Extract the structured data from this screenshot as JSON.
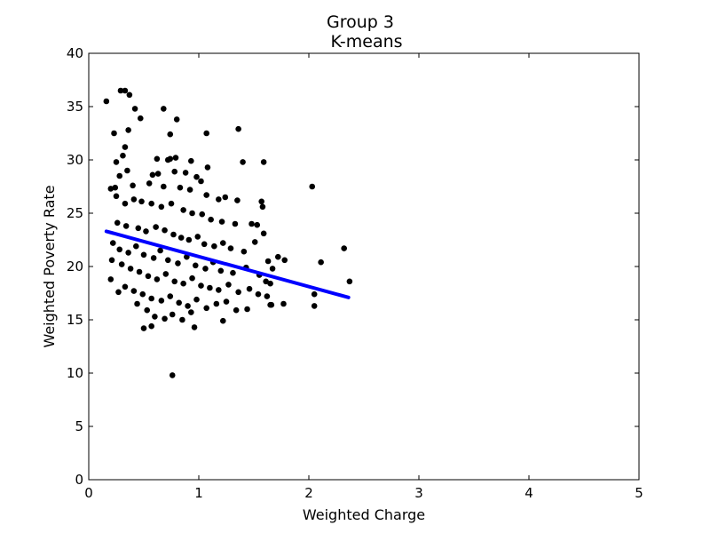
{
  "chart_data": {
    "type": "scatter",
    "title": "Group 3",
    "subtitle": "K-means",
    "xlabel": "Weighted Charge",
    "ylabel": "Weighted Poverty Rate",
    "xlim": [
      0,
      5
    ],
    "ylim": [
      0,
      40
    ],
    "xticks": [
      "0",
      "1",
      "2",
      "3",
      "4",
      "5"
    ],
    "yticks": [
      "0",
      "5",
      "10",
      "15",
      "20",
      "25",
      "30",
      "35",
      "40"
    ],
    "grid": false,
    "legend": "none",
    "point_color": "#000000",
    "line_color": "#0000ff",
    "regression_line": {
      "x": [
        0.16,
        2.36
      ],
      "y": [
        23.3,
        17.1
      ]
    },
    "points": [
      [
        0.16,
        35.5
      ],
      [
        0.29,
        36.5
      ],
      [
        0.33,
        36.5
      ],
      [
        0.37,
        36.1
      ],
      [
        0.23,
        32.5
      ],
      [
        0.36,
        32.8
      ],
      [
        0.42,
        34.8
      ],
      [
        0.47,
        33.9
      ],
      [
        0.68,
        34.8
      ],
      [
        0.8,
        33.8
      ],
      [
        0.74,
        32.4
      ],
      [
        1.07,
        32.5
      ],
      [
        1.36,
        32.9
      ],
      [
        0.33,
        31.2
      ],
      [
        0.31,
        30.4
      ],
      [
        0.25,
        29.8
      ],
      [
        0.62,
        30.1
      ],
      [
        0.72,
        30.0
      ],
      [
        0.74,
        30.1
      ],
      [
        0.79,
        30.2
      ],
      [
        0.93,
        29.9
      ],
      [
        1.08,
        29.3
      ],
      [
        1.4,
        29.8
      ],
      [
        1.59,
        29.8
      ],
      [
        0.35,
        29.0
      ],
      [
        0.28,
        28.5
      ],
      [
        0.58,
        28.6
      ],
      [
        0.63,
        28.7
      ],
      [
        0.78,
        28.9
      ],
      [
        0.88,
        28.8
      ],
      [
        0.98,
        28.4
      ],
      [
        0.24,
        27.4
      ],
      [
        0.2,
        27.3
      ],
      [
        0.4,
        27.6
      ],
      [
        0.55,
        27.8
      ],
      [
        0.68,
        27.5
      ],
      [
        0.83,
        27.4
      ],
      [
        0.92,
        27.2
      ],
      [
        1.02,
        28.0
      ],
      [
        1.07,
        26.7
      ],
      [
        1.18,
        26.3
      ],
      [
        1.24,
        26.5
      ],
      [
        1.35,
        26.2
      ],
      [
        1.57,
        26.1
      ],
      [
        1.58,
        25.6
      ],
      [
        2.03,
        27.5
      ],
      [
        0.25,
        26.6
      ],
      [
        0.33,
        25.9
      ],
      [
        0.41,
        26.3
      ],
      [
        0.48,
        26.1
      ],
      [
        0.57,
        25.9
      ],
      [
        0.66,
        25.6
      ],
      [
        0.75,
        25.9
      ],
      [
        0.86,
        25.3
      ],
      [
        0.94,
        25.0
      ],
      [
        1.03,
        24.9
      ],
      [
        1.11,
        24.4
      ],
      [
        1.21,
        24.2
      ],
      [
        1.33,
        24.0
      ],
      [
        1.48,
        24.0
      ],
      [
        1.53,
        23.9
      ],
      [
        1.59,
        23.1
      ],
      [
        0.26,
        24.1
      ],
      [
        0.34,
        23.8
      ],
      [
        0.45,
        23.6
      ],
      [
        0.52,
        23.3
      ],
      [
        0.61,
        23.7
      ],
      [
        0.69,
        23.4
      ],
      [
        0.77,
        23.0
      ],
      [
        0.84,
        22.7
      ],
      [
        0.91,
        22.5
      ],
      [
        0.99,
        22.8
      ],
      [
        1.05,
        22.1
      ],
      [
        1.14,
        21.9
      ],
      [
        1.22,
        22.2
      ],
      [
        1.29,
        21.7
      ],
      [
        1.41,
        21.4
      ],
      [
        1.51,
        22.3
      ],
      [
        0.22,
        22.2
      ],
      [
        0.28,
        21.6
      ],
      [
        0.36,
        21.3
      ],
      [
        0.43,
        21.9
      ],
      [
        0.5,
        21.1
      ],
      [
        0.59,
        20.8
      ],
      [
        0.65,
        21.5
      ],
      [
        0.72,
        20.6
      ],
      [
        0.81,
        20.3
      ],
      [
        0.89,
        20.9
      ],
      [
        0.97,
        20.1
      ],
      [
        1.06,
        19.8
      ],
      [
        1.13,
        20.4
      ],
      [
        1.2,
        19.6
      ],
      [
        1.31,
        19.4
      ],
      [
        1.43,
        19.9
      ],
      [
        1.55,
        19.2
      ],
      [
        0.21,
        20.6
      ],
      [
        0.3,
        20.2
      ],
      [
        0.38,
        19.8
      ],
      [
        0.46,
        19.5
      ],
      [
        0.54,
        19.1
      ],
      [
        0.62,
        18.8
      ],
      [
        0.7,
        19.3
      ],
      [
        0.78,
        18.6
      ],
      [
        0.86,
        18.4
      ],
      [
        0.94,
        18.9
      ],
      [
        1.02,
        18.2
      ],
      [
        1.1,
        18.0
      ],
      [
        1.18,
        17.8
      ],
      [
        1.27,
        18.3
      ],
      [
        1.36,
        17.6
      ],
      [
        1.46,
        17.9
      ],
      [
        1.54,
        17.4
      ],
      [
        1.62,
        17.2
      ],
      [
        0.2,
        18.8
      ],
      [
        0.33,
        18.1
      ],
      [
        0.41,
        17.7
      ],
      [
        0.49,
        17.4
      ],
      [
        0.57,
        17.0
      ],
      [
        0.66,
        16.8
      ],
      [
        0.74,
        17.2
      ],
      [
        0.82,
        16.6
      ],
      [
        0.9,
        16.3
      ],
      [
        0.98,
        16.9
      ],
      [
        1.07,
        16.1
      ],
      [
        1.16,
        16.5
      ],
      [
        1.25,
        16.7
      ],
      [
        1.34,
        15.9
      ],
      [
        1.44,
        16.0
      ],
      [
        1.65,
        16.4
      ],
      [
        0.27,
        17.6
      ],
      [
        0.44,
        16.5
      ],
      [
        0.53,
        15.9
      ],
      [
        0.6,
        15.3
      ],
      [
        0.69,
        15.1
      ],
      [
        0.76,
        15.5
      ],
      [
        0.85,
        15.0
      ],
      [
        0.93,
        15.7
      ],
      [
        1.22,
        14.9
      ],
      [
        0.5,
        14.2
      ],
      [
        0.57,
        14.4
      ],
      [
        0.96,
        14.3
      ],
      [
        0.76,
        9.8
      ],
      [
        1.63,
        20.5
      ],
      [
        1.67,
        19.8
      ],
      [
        1.72,
        20.9
      ],
      [
        1.78,
        20.6
      ],
      [
        1.61,
        18.6
      ],
      [
        1.65,
        18.4
      ],
      [
        1.77,
        16.5
      ],
      [
        2.05,
        17.4
      ],
      [
        2.05,
        16.3
      ],
      [
        2.11,
        20.4
      ],
      [
        2.32,
        21.7
      ],
      [
        2.37,
        18.6
      ],
      [
        1.66,
        16.4
      ]
    ]
  }
}
